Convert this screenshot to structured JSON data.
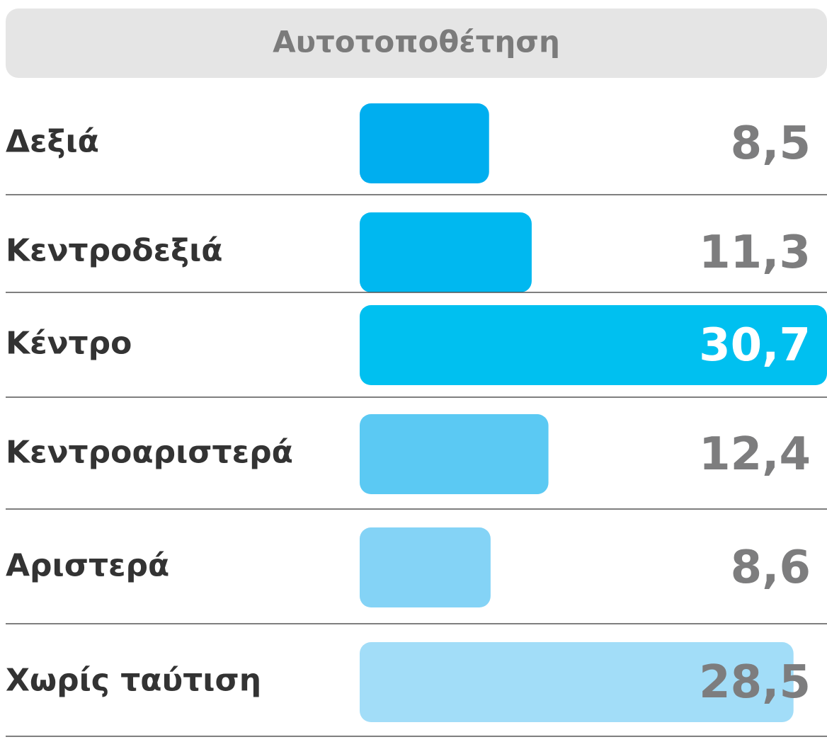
{
  "chart_data": {
    "type": "bar",
    "orientation": "horizontal",
    "title": "Αυτοτοποθέτηση",
    "categories": [
      "Δεξιά",
      "Κεντροδεξιά",
      "Κέντρο",
      "Κεντροαριστερά",
      "Αριστερά",
      "Χωρίς ταύτιση"
    ],
    "values": [
      8.5,
      11.3,
      30.7,
      12.4,
      8.6,
      28.5
    ],
    "value_labels": [
      "8,5",
      "11,3",
      "30,7",
      "12,4",
      "8,6",
      "28,5"
    ],
    "colors": [
      "#00aeef",
      "#00b8f0",
      "#00c0f0",
      "#5bc9f3",
      "#84d3f6",
      "#a2ddf8"
    ],
    "value_label_colors": [
      "#7d7d7e",
      "#7d7d7e",
      "#ffffff",
      "#7d7d7e",
      "#7d7d7e",
      "#7d7d7e"
    ]
  }
}
